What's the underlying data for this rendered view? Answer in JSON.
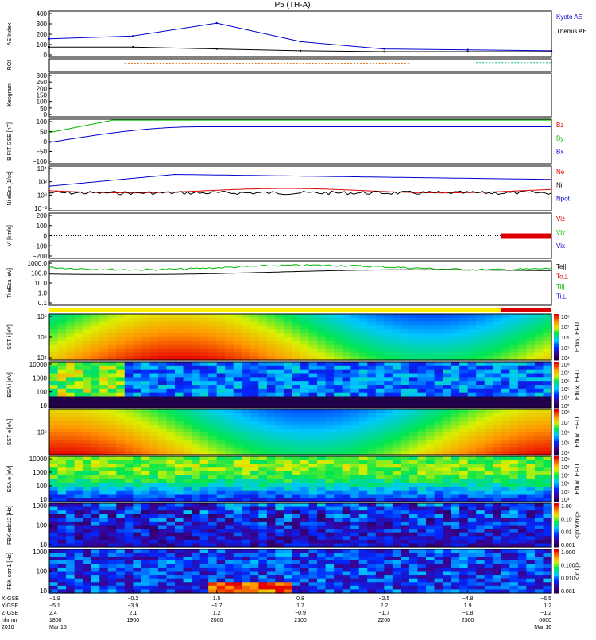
{
  "title": "P5 (TH-A)",
  "panels": [
    {
      "id": "ae",
      "ylabel": "AE Index",
      "yticks": [
        "400",
        "300",
        "200",
        "100",
        "0"
      ],
      "legend": [
        {
          "label": "Kyoto AE",
          "color": "#0000cc"
        },
        {
          "label": "Themis AE",
          "color": "#000000"
        }
      ]
    },
    {
      "id": "roi",
      "ylabel": "ROI",
      "yticks": [],
      "legend": []
    },
    {
      "id": "keogram",
      "ylabel": "Keogram",
      "yticks": [
        "300",
        "250",
        "200",
        "150",
        "100",
        "50",
        "0"
      ],
      "legend": []
    },
    {
      "id": "bfit",
      "ylabel": "B FIT GSE [nT]",
      "yticks": [
        "100",
        "50",
        "0",
        "−50",
        "−100"
      ],
      "legend": [
        {
          "label": "Bz",
          "color": "#dd0000"
        },
        {
          "label": "By",
          "color": "#00bb00"
        },
        {
          "label": "Bx",
          "color": "#0000cc"
        }
      ]
    },
    {
      "id": "density",
      "ylabel": "Ni eEsa [1/cc]",
      "yticks": [
        "10⁴",
        "10²",
        "10⁰",
        "10⁻²"
      ],
      "legend": [
        {
          "label": "Ne",
          "color": "#dd0000"
        },
        {
          "label": "Ni",
          "color": "#000000"
        },
        {
          "label": "Npot",
          "color": "#0000cc"
        }
      ]
    },
    {
      "id": "velocity",
      "ylabel": "Vi [km/s]",
      "yticks": [
        "200",
        "100",
        "0",
        "−100",
        "−200"
      ],
      "legend": [
        {
          "label": "Viz",
          "color": "#dd0000"
        },
        {
          "label": "Viy",
          "color": "#00bb00"
        },
        {
          "label": "Vix",
          "color": "#0000cc"
        }
      ]
    },
    {
      "id": "temperature",
      "ylabel": "Ti eEsa [eV]",
      "yticks": [
        "1000.0",
        "100.0",
        "10.0",
        "1.0",
        "0.1"
      ],
      "legend": [
        {
          "label": "Te||",
          "color": "#000000"
        },
        {
          "label": "Te⊥",
          "color": "#dd0000"
        },
        {
          "label": "Ti||",
          "color": "#00bb00"
        },
        {
          "label": "Ti⊥",
          "color": "#0000cc"
        }
      ]
    },
    {
      "id": "sst_i",
      "ylabel": "SST i [eV]",
      "yticks": [
        "10⁶",
        "10⁵",
        "10⁴"
      ],
      "cbar": "Eflux, EFU",
      "cbar_ticks": [
        "10⁸",
        "10⁷",
        "10⁶",
        "10⁵",
        "10⁴"
      ]
    },
    {
      "id": "esa_i",
      "ylabel": "ESA i [eV]",
      "yticks": [
        "10000",
        "1000",
        "100",
        "10"
      ],
      "cbar": "Eflux, EFU",
      "cbar_ticks": [
        "10⁸",
        "10⁷",
        "10⁶",
        "10⁵",
        "10⁴",
        "10³"
      ]
    },
    {
      "id": "sst_e",
      "ylabel": "SST e [eV]",
      "yticks": [
        "10⁵"
      ],
      "cbar": "Eflux, EFU",
      "cbar_ticks": [
        "10⁸",
        "10⁷",
        "10⁶",
        "10⁵",
        "10⁴"
      ]
    },
    {
      "id": "esa_e",
      "ylabel": "ESA e [eV]",
      "yticks": [
        "10000",
        "1000",
        "100",
        "10"
      ],
      "cbar": "Eflux, EFU",
      "cbar_ticks": [
        "10⁹",
        "10⁸",
        "10⁷",
        "10⁶",
        "10⁵",
        "10⁴"
      ]
    },
    {
      "id": "fbk_e",
      "ylabel": "FBK edc12 [Hz]",
      "yticks": [
        "1000",
        "100",
        "10"
      ],
      "cbar": "<|mV/m|>",
      "cbar_ticks": [
        "1.00",
        "0.10",
        "0.01",
        "0.001"
      ]
    },
    {
      "id": "fbk_b",
      "ylabel": "FBK scm1 [Hz]",
      "yticks": [
        "1000",
        "100",
        "10"
      ],
      "cbar": "<|nT|>",
      "cbar_ticks": [
        "1.000",
        "0.100",
        "0.010",
        "0.001"
      ]
    }
  ],
  "xaxis": {
    "row_labels": [
      "X-GSE",
      "Y-GSE",
      "Z-GSE",
      "hhmm",
      "2010"
    ],
    "columns": [
      {
        "x": "−1.9",
        "y": "−5.1",
        "z": "2.4",
        "t": "1800",
        "d": "Mar 15"
      },
      {
        "x": "−0.2",
        "y": "−3.9",
        "z": "2.1",
        "t": "1900",
        "d": ""
      },
      {
        "x": "1.5",
        "y": "−1.7",
        "z": "1.2",
        "t": "2000",
        "d": ""
      },
      {
        "x": "0.8",
        "y": "1.7",
        "z": "−0.9",
        "t": "2100",
        "d": ""
      },
      {
        "x": "−2.5",
        "y": "2.2",
        "z": "−1.7",
        "t": "2200",
        "d": ""
      },
      {
        "x": "−4.8",
        "y": "1.9",
        "z": "−1.8",
        "t": "2300",
        "d": ""
      },
      {
        "x": "−6.5",
        "y": "1.2",
        "z": "−1.2",
        "t": "0000",
        "d": "Mar 16"
      }
    ]
  },
  "chart_data": {
    "type": "line",
    "title": "P5 (TH-A)",
    "x": [
      "1800",
      "1900",
      "2000",
      "2100",
      "2200",
      "2300",
      "0000"
    ],
    "series": [
      {
        "name": "Kyoto AE",
        "values": [
          150,
          180,
          320,
          120,
          40,
          30,
          20
        ]
      },
      {
        "name": "Themis AE",
        "values": [
          60,
          60,
          40,
          20,
          10,
          10,
          10
        ]
      }
    ],
    "ylabel": "AE Index",
    "ylim": [
      -50,
      450
    ]
  }
}
